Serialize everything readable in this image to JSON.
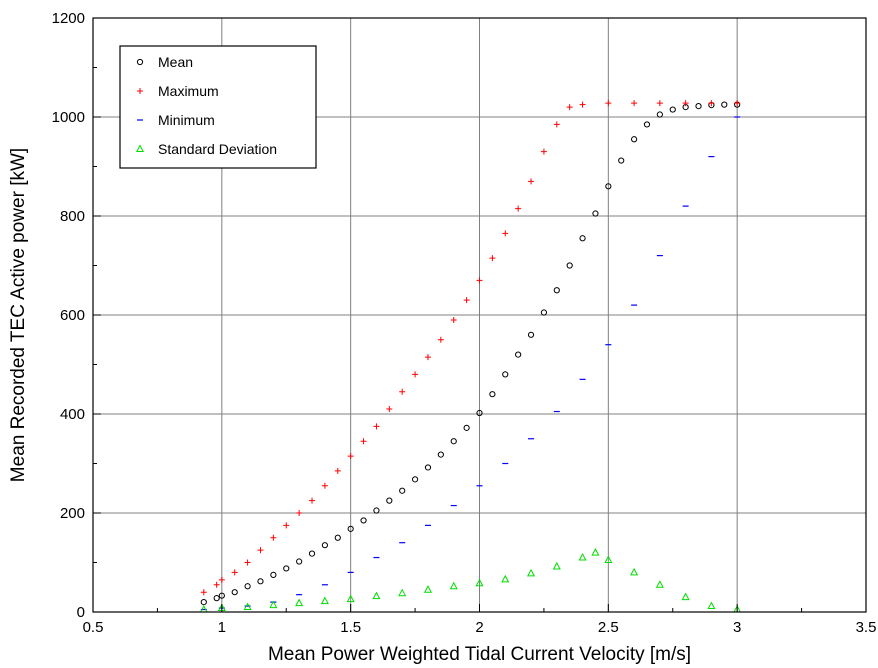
{
  "chart_data": {
    "type": "scatter",
    "title": "",
    "xlabel": "Mean Power Weighted Tidal Current Velocity [m/s]",
    "ylabel": "Mean Recorded TEC Active power [kW]",
    "xlim": [
      0.5,
      3.5
    ],
    "ylim": [
      0,
      1200
    ],
    "xticks": [
      "0.5",
      "1",
      "1.5",
      "2",
      "2.5",
      "3",
      "3.5"
    ],
    "yticks": [
      "0",
      "200",
      "400",
      "600",
      "800",
      "1000",
      "1200"
    ],
    "grid": true,
    "legend_position": "top-left",
    "series": [
      {
        "name": "Mean",
        "marker": "circle",
        "color": "#000000",
        "points": [
          [
            0.93,
            20
          ],
          [
            0.98,
            28
          ],
          [
            1.0,
            33
          ],
          [
            1.05,
            40
          ],
          [
            1.1,
            52
          ],
          [
            1.15,
            62
          ],
          [
            1.2,
            75
          ],
          [
            1.25,
            88
          ],
          [
            1.3,
            102
          ],
          [
            1.35,
            118
          ],
          [
            1.4,
            135
          ],
          [
            1.45,
            150
          ],
          [
            1.5,
            168
          ],
          [
            1.55,
            185
          ],
          [
            1.6,
            205
          ],
          [
            1.65,
            225
          ],
          [
            1.7,
            245
          ],
          [
            1.75,
            268
          ],
          [
            1.8,
            292
          ],
          [
            1.85,
            318
          ],
          [
            1.9,
            345
          ],
          [
            1.95,
            372
          ],
          [
            2.0,
            402
          ],
          [
            2.05,
            440
          ],
          [
            2.1,
            480
          ],
          [
            2.15,
            520
          ],
          [
            2.2,
            560
          ],
          [
            2.25,
            605
          ],
          [
            2.3,
            650
          ],
          [
            2.35,
            700
          ],
          [
            2.4,
            755
          ],
          [
            2.45,
            805
          ],
          [
            2.5,
            860
          ],
          [
            2.55,
            912
          ],
          [
            2.6,
            955
          ],
          [
            2.65,
            985
          ],
          [
            2.7,
            1005
          ],
          [
            2.75,
            1015
          ],
          [
            2.8,
            1020
          ],
          [
            2.85,
            1022
          ],
          [
            2.9,
            1024
          ],
          [
            2.95,
            1025
          ],
          [
            3.0,
            1025
          ]
        ]
      },
      {
        "name": "Maximum",
        "marker": "plus",
        "color": "#ff0000",
        "points": [
          [
            0.93,
            40
          ],
          [
            0.98,
            55
          ],
          [
            1.0,
            65
          ],
          [
            1.05,
            80
          ],
          [
            1.1,
            100
          ],
          [
            1.15,
            125
          ],
          [
            1.2,
            150
          ],
          [
            1.25,
            175
          ],
          [
            1.3,
            200
          ],
          [
            1.35,
            225
          ],
          [
            1.4,
            255
          ],
          [
            1.45,
            285
          ],
          [
            1.5,
            315
          ],
          [
            1.55,
            345
          ],
          [
            1.6,
            375
          ],
          [
            1.65,
            410
          ],
          [
            1.7,
            445
          ],
          [
            1.75,
            480
          ],
          [
            1.8,
            515
          ],
          [
            1.85,
            550
          ],
          [
            1.9,
            590
          ],
          [
            1.95,
            630
          ],
          [
            2.0,
            670
          ],
          [
            2.05,
            715
          ],
          [
            2.1,
            765
          ],
          [
            2.15,
            815
          ],
          [
            2.2,
            870
          ],
          [
            2.25,
            930
          ],
          [
            2.3,
            985
          ],
          [
            2.35,
            1020
          ],
          [
            2.4,
            1025
          ],
          [
            2.5,
            1028
          ],
          [
            2.6,
            1028
          ],
          [
            2.7,
            1028
          ],
          [
            2.8,
            1028
          ],
          [
            2.9,
            1028
          ],
          [
            3.0,
            1028
          ]
        ]
      },
      {
        "name": "Minimum",
        "marker": "dash",
        "color": "#0000ff",
        "points": [
          [
            0.93,
            5
          ],
          [
            1.0,
            8
          ],
          [
            1.1,
            12
          ],
          [
            1.2,
            20
          ],
          [
            1.3,
            35
          ],
          [
            1.4,
            55
          ],
          [
            1.5,
            80
          ],
          [
            1.6,
            110
          ],
          [
            1.7,
            140
          ],
          [
            1.8,
            175
          ],
          [
            1.9,
            215
          ],
          [
            2.0,
            255
          ],
          [
            2.1,
            300
          ],
          [
            2.2,
            350
          ],
          [
            2.3,
            405
          ],
          [
            2.4,
            470
          ],
          [
            2.5,
            540
          ],
          [
            2.6,
            620
          ],
          [
            2.7,
            720
          ],
          [
            2.8,
            820
          ],
          [
            2.9,
            920
          ],
          [
            3.0,
            1000
          ]
        ]
      },
      {
        "name": "Standard Deviation",
        "marker": "triangle",
        "color": "#00dd00",
        "points": [
          [
            0.93,
            5
          ],
          [
            1.0,
            8
          ],
          [
            1.1,
            10
          ],
          [
            1.2,
            14
          ],
          [
            1.3,
            18
          ],
          [
            1.4,
            22
          ],
          [
            1.5,
            26
          ],
          [
            1.6,
            32
          ],
          [
            1.7,
            38
          ],
          [
            1.8,
            45
          ],
          [
            1.9,
            52
          ],
          [
            2.0,
            58
          ],
          [
            2.1,
            66
          ],
          [
            2.2,
            78
          ],
          [
            2.3,
            92
          ],
          [
            2.4,
            110
          ],
          [
            2.45,
            120
          ],
          [
            2.5,
            105
          ],
          [
            2.6,
            80
          ],
          [
            2.7,
            55
          ],
          [
            2.8,
            30
          ],
          [
            2.9,
            12
          ],
          [
            3.0,
            5
          ]
        ]
      }
    ]
  }
}
